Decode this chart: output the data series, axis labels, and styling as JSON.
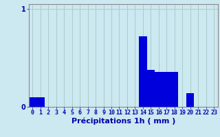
{
  "hours": [
    0,
    1,
    2,
    3,
    4,
    5,
    6,
    7,
    8,
    9,
    10,
    11,
    12,
    13,
    14,
    15,
    16,
    17,
    18,
    19,
    20,
    21,
    22,
    23
  ],
  "values": [
    0.1,
    0.1,
    0,
    0,
    0,
    0,
    0,
    0,
    0,
    0,
    0,
    0,
    0,
    0,
    0.72,
    0.38,
    0.36,
    0.36,
    0.36,
    0,
    0.14,
    0,
    0,
    0
  ],
  "bar_color": "#0000dd",
  "background_color": "#cce8f0",
  "grid_color": "#aacccc",
  "axis_color": "#0000aa",
  "text_color": "#0000aa",
  "xlabel": "Précipitations 1h ( mm )",
  "xlabel_fontsize": 8,
  "tick_fontsize": 6,
  "ylim": [
    0,
    1.05
  ],
  "yticks": [
    0,
    1
  ],
  "bar_width": 1.0
}
